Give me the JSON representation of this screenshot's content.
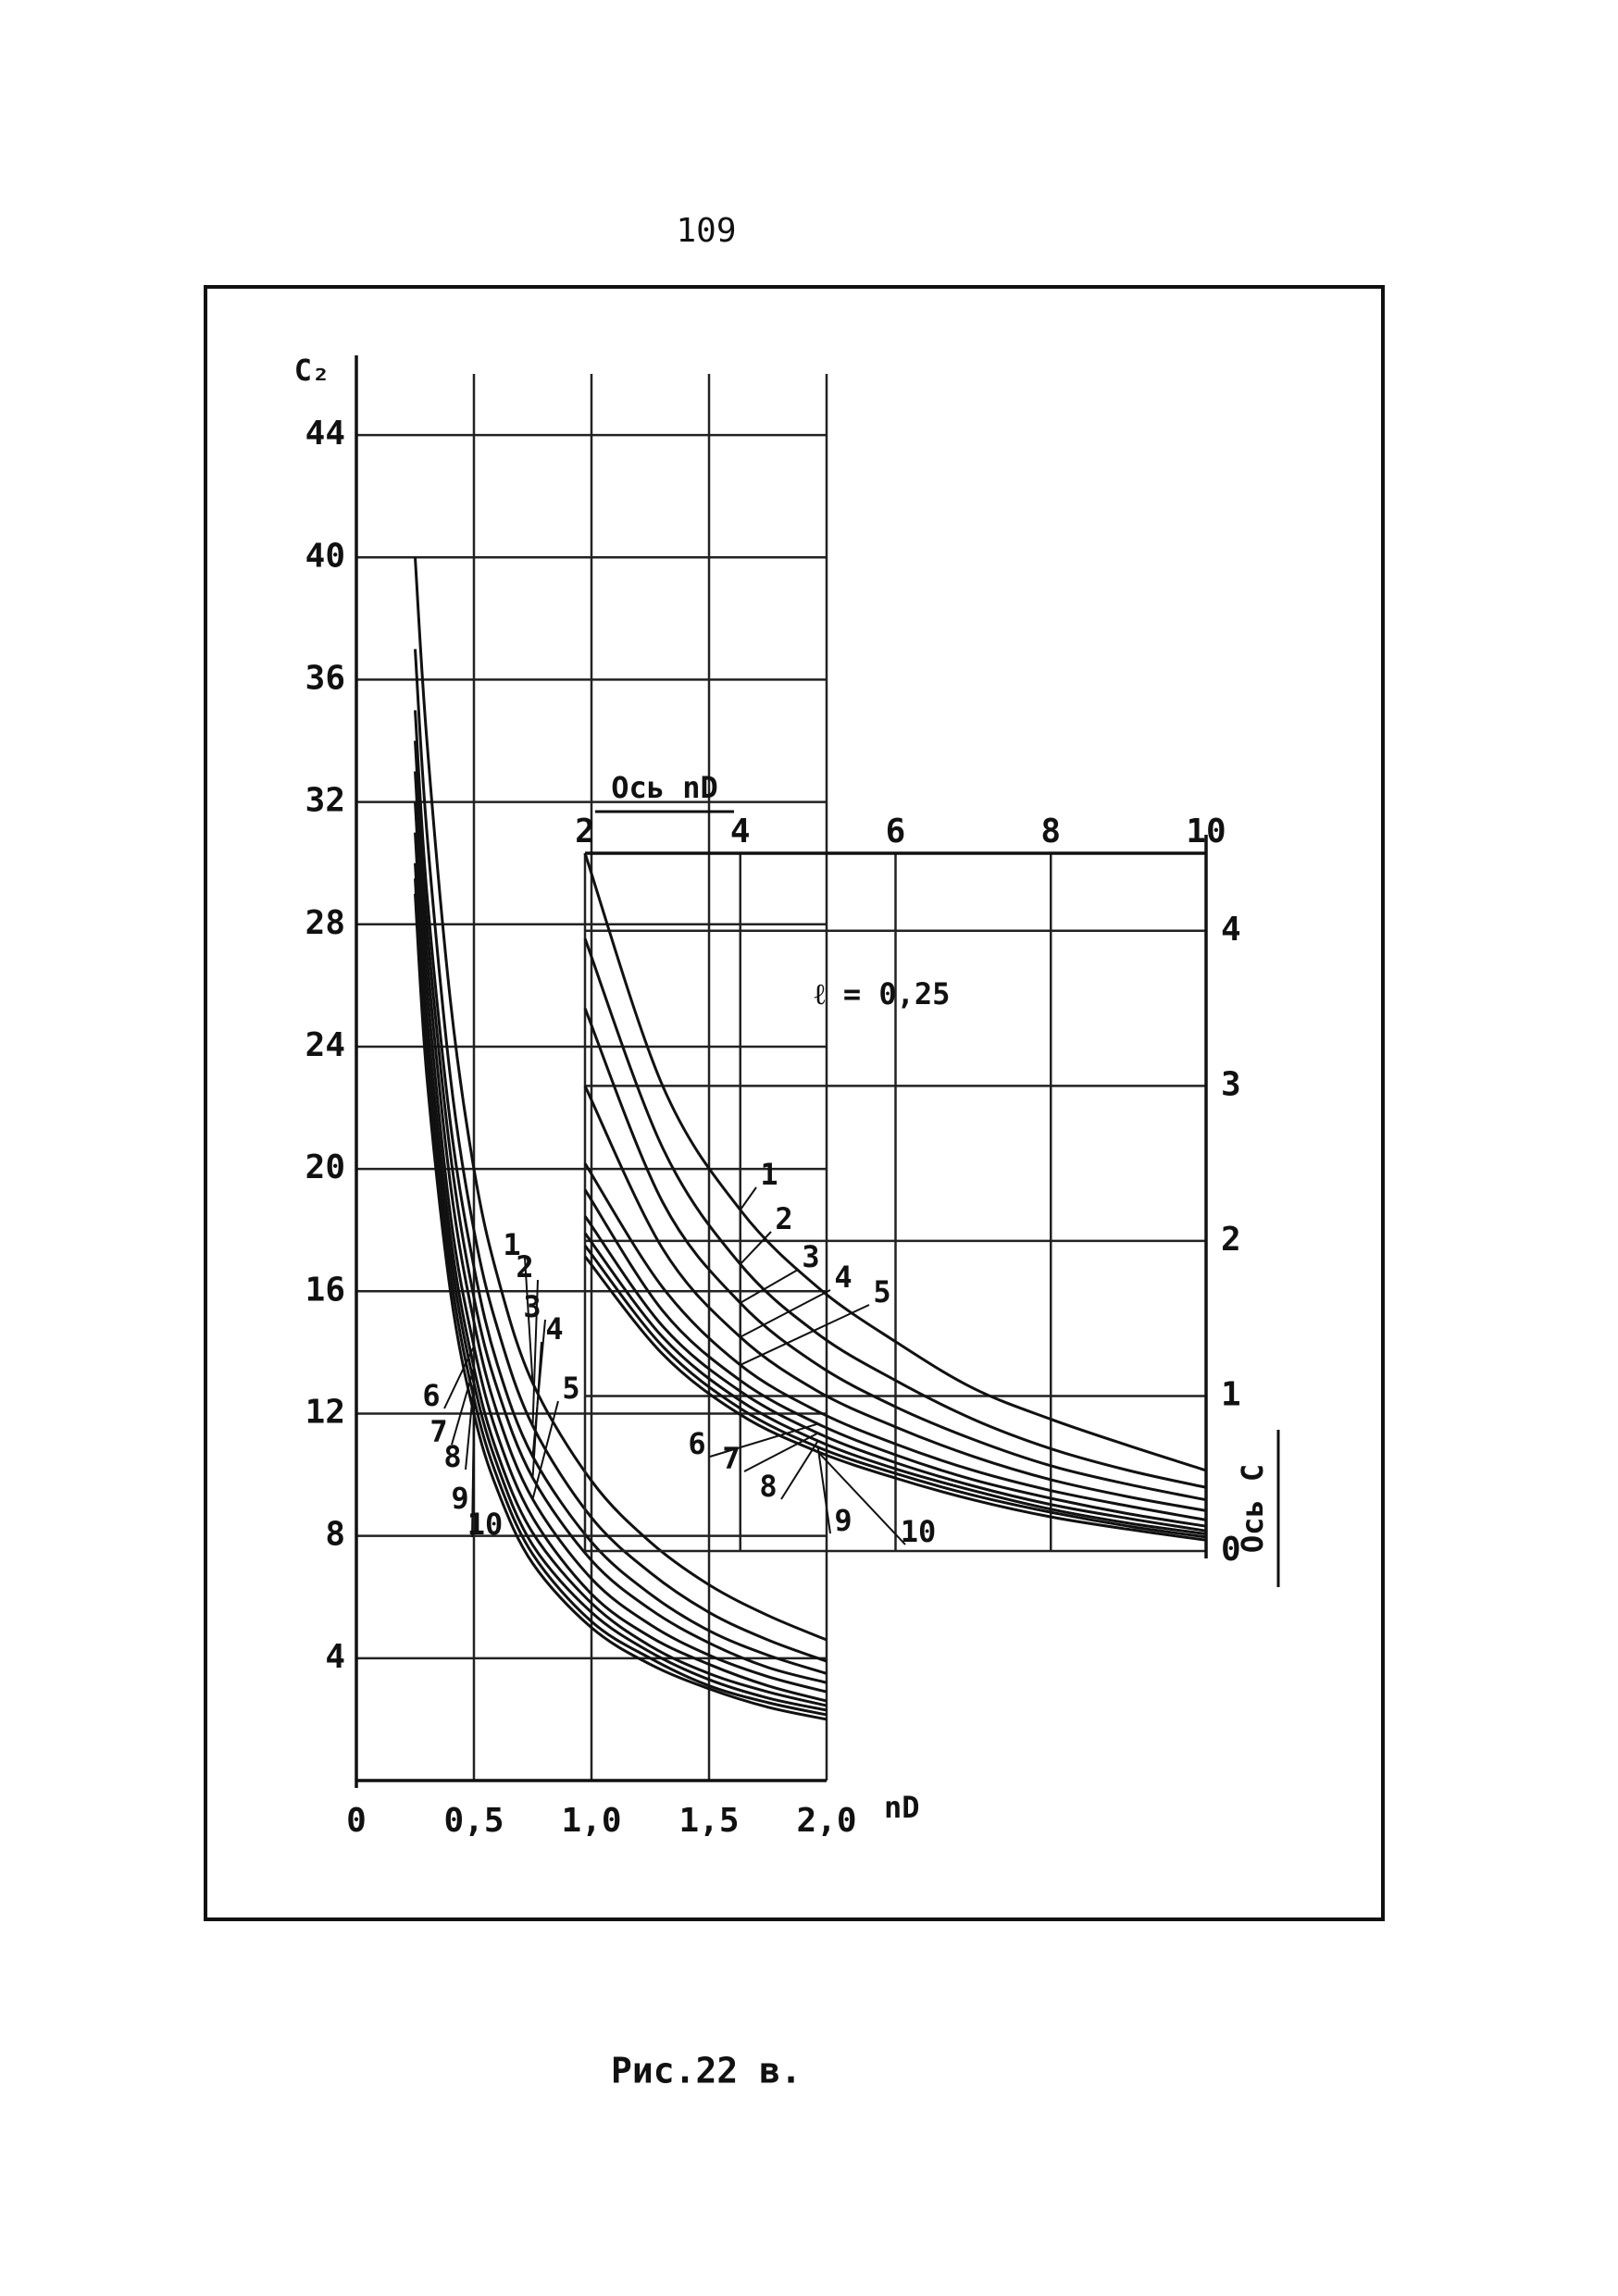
{
  "page_number": "109",
  "caption": "Рис.22 в.",
  "chart_data": [
    {
      "type": "line",
      "ylabel": "C₂",
      "xlabel": "nD",
      "xlim": [
        0,
        2
      ],
      "ylim": [
        0,
        46
      ],
      "xticks": [
        0,
        {
          "value": 0.5,
          "label": "0,5"
        },
        {
          "value": 1.0,
          "label": "1,0"
        },
        {
          "value": 1.5,
          "label": "1,5"
        },
        {
          "value": 2.0,
          "label": "2,0"
        }
      ],
      "yticks": [
        4,
        8,
        12,
        16,
        20,
        24,
        28,
        32,
        36,
        40,
        44
      ],
      "grid": true,
      "x": [
        0.25,
        0.3,
        0.4,
        0.5,
        0.6,
        0.75,
        1.0,
        1.25,
        1.5,
        1.75,
        2.0
      ],
      "series": [
        {
          "name": "1",
          "color": "#111111",
          "values": [
            40,
            34,
            25.5,
            20,
            16.5,
            13,
            9.8,
            7.8,
            6.4,
            5.4,
            4.6
          ]
        },
        {
          "name": "2",
          "color": "#111111",
          "values": [
            37,
            31,
            23,
            18,
            14.8,
            11.6,
            8.6,
            6.8,
            5.5,
            4.6,
            3.9
          ]
        },
        {
          "name": "3",
          "color": "#111111",
          "values": [
            35,
            29,
            21.5,
            16.8,
            13.6,
            10.6,
            7.8,
            6.1,
            4.9,
            4.1,
            3.5
          ]
        },
        {
          "name": "4",
          "color": "#111111",
          "values": [
            34,
            28,
            20.5,
            15.8,
            12.8,
            9.9,
            7.2,
            5.6,
            4.5,
            3.7,
            3.2
          ]
        },
        {
          "name": "5",
          "color": "#111111",
          "values": [
            33,
            27,
            19.5,
            15,
            12,
            9.2,
            6.6,
            5.1,
            4.1,
            3.4,
            2.9
          ]
        },
        {
          "name": "6",
          "color": "#111111",
          "values": [
            32,
            26,
            18.5,
            14.2,
            11.3,
            8.6,
            6.1,
            4.7,
            3.8,
            3.1,
            2.6
          ]
        },
        {
          "name": "7",
          "color": "#111111",
          "values": [
            31,
            25,
            17.8,
            13.5,
            10.7,
            8.1,
            5.8,
            4.4,
            3.5,
            2.9,
            2.45
          ]
        },
        {
          "name": "8",
          "color": "#111111",
          "values": [
            30,
            24.2,
            17.2,
            13,
            10.3,
            7.7,
            5.5,
            4.2,
            3.3,
            2.7,
            2.3
          ]
        },
        {
          "name": "9",
          "color": "#111111",
          "values": [
            29.5,
            23.6,
            16.6,
            12.5,
            9.9,
            7.4,
            5.2,
            4.0,
            3.1,
            2.55,
            2.15
          ]
        },
        {
          "name": "10",
          "color": "#111111",
          "values": [
            29,
            23,
            16,
            12,
            9.5,
            7.1,
            5.0,
            3.8,
            3.0,
            2.4,
            2.0
          ]
        }
      ]
    },
    {
      "type": "line",
      "xlabel": "Ось nD",
      "ylabel": "Ось C",
      "annotation": "ℓ = 0,25",
      "xlim": [
        2,
        10
      ],
      "ylim": [
        0,
        4.5
      ],
      "xticks": [
        2,
        4,
        6,
        8,
        10
      ],
      "yticks": [
        0,
        1,
        2,
        3,
        4
      ],
      "grid": true,
      "x": [
        2,
        3,
        4,
        5,
        6,
        7,
        8,
        9,
        10
      ],
      "series": [
        {
          "name": "1",
          "color": "#111111",
          "values": [
            4.5,
            3.0,
            2.2,
            1.7,
            1.35,
            1.05,
            0.85,
            0.68,
            0.52
          ]
        },
        {
          "name": "2",
          "color": "#111111",
          "values": [
            3.95,
            2.6,
            1.85,
            1.4,
            1.1,
            0.85,
            0.66,
            0.52,
            0.41
          ]
        },
        {
          "name": "3",
          "color": "#111111",
          "values": [
            3.5,
            2.25,
            1.6,
            1.2,
            0.93,
            0.72,
            0.55,
            0.43,
            0.33
          ]
        },
        {
          "name": "4",
          "color": "#111111",
          "values": [
            3.0,
            1.95,
            1.38,
            1.03,
            0.8,
            0.61,
            0.46,
            0.35,
            0.26
          ]
        },
        {
          "name": "5",
          "color": "#111111",
          "values": [
            2.5,
            1.7,
            1.2,
            0.9,
            0.69,
            0.52,
            0.39,
            0.29,
            0.2
          ]
        },
        {
          "name": "6",
          "color": "#111111",
          "values": [
            2.33,
            1.55,
            1.1,
            0.82,
            0.62,
            0.46,
            0.34,
            0.24,
            0.16
          ]
        },
        {
          "name": "7",
          "color": "#111111",
          "values": [
            2.16,
            1.45,
            1.03,
            0.76,
            0.57,
            0.42,
            0.3,
            0.21,
            0.13
          ]
        },
        {
          "name": "8",
          "color": "#111111",
          "values": [
            2.05,
            1.38,
            0.97,
            0.71,
            0.53,
            0.39,
            0.27,
            0.18,
            0.11
          ]
        },
        {
          "name": "9",
          "color": "#111111",
          "values": [
            1.97,
            1.32,
            0.92,
            0.67,
            0.5,
            0.36,
            0.25,
            0.16,
            0.09
          ]
        },
        {
          "name": "10",
          "color": "#111111",
          "values": [
            1.9,
            1.27,
            0.88,
            0.64,
            0.47,
            0.33,
            0.22,
            0.14,
            0.07
          ]
        }
      ]
    }
  ]
}
